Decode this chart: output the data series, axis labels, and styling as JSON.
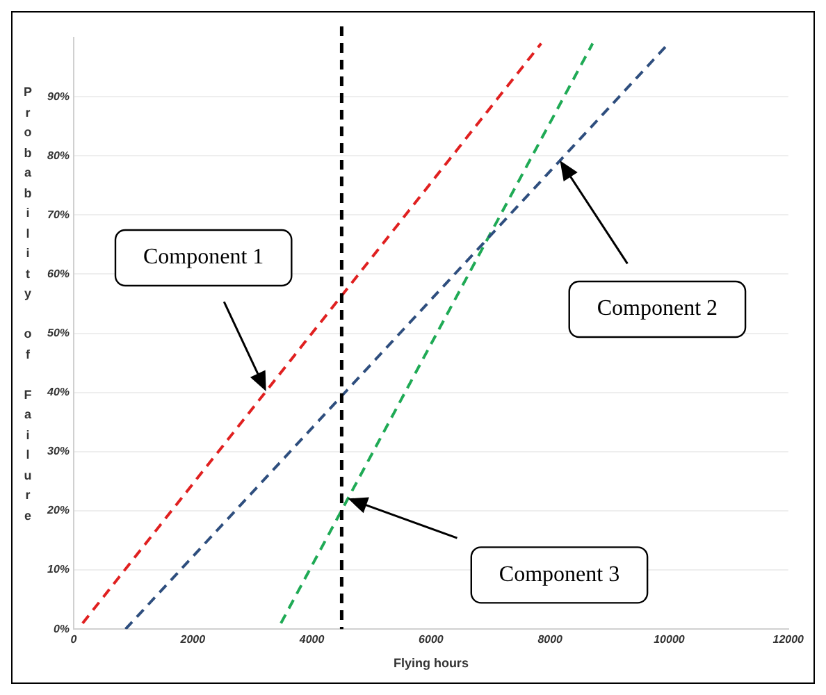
{
  "chart_data": {
    "type": "line",
    "xlabel": "Flying hours",
    "ylabel": "Probability of Failure",
    "series": [
      {
        "color": "#e02020",
        "x": [
          150,
          7850
        ],
        "values": [
          1,
          99
        ],
        "line_style": "dashed"
      },
      {
        "color": "#2e4e7e",
        "x": [
          870,
          9990
        ],
        "values": [
          0,
          99
        ],
        "line_style": "dashed"
      },
      {
        "color": "#1faa55",
        "x": [
          3480,
          8715
        ],
        "values": [
          1,
          99
        ],
        "line_style": "dashed"
      }
    ],
    "xlim": [
      0,
      12000
    ],
    "xticks": [
      0,
      2000,
      4000,
      6000,
      8000,
      10000,
      12000
    ],
    "ylim": [
      0,
      100
    ],
    "yticks": [
      {
        "value": 0,
        "label": "0%"
      },
      {
        "value": 10,
        "label": "10%"
      },
      {
        "value": 20,
        "label": "20%"
      },
      {
        "value": 30,
        "label": "30%"
      },
      {
        "value": 40,
        "label": "40%"
      },
      {
        "value": 50,
        "label": "50%"
      },
      {
        "value": 60,
        "label": "60%"
      },
      {
        "value": 70,
        "label": "70%"
      },
      {
        "value": 80,
        "label": "80%"
      },
      {
        "value": 90,
        "label": "90%"
      }
    ],
    "grid": "y",
    "legend": false,
    "marker": "none",
    "ref_lines": [
      {
        "axis": "x",
        "value": 4500,
        "color": "#000000",
        "line_style": "dashed"
      }
    ],
    "annotations": [
      "Component 1",
      "Component 2",
      "Component 3"
    ]
  }
}
